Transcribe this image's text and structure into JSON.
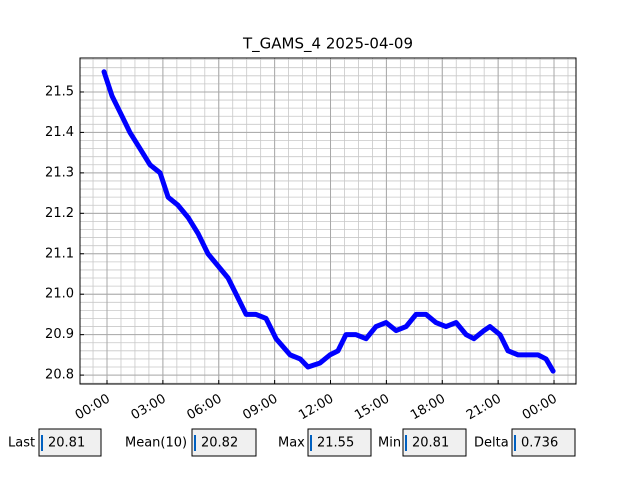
{
  "chart_data": {
    "type": "line",
    "title": "T_GAMS_4 2025-04-09",
    "x": [
      -0.16,
      0.27,
      0.7,
      1.23,
      1.77,
      2.31,
      2.85,
      3.28,
      3.81,
      4.35,
      4.89,
      5.42,
      5.96,
      6.5,
      7.04,
      7.47,
      8.0,
      8.54,
      9.08,
      9.83,
      10.37,
      10.79,
      11.44,
      11.97,
      12.4,
      12.83,
      13.37,
      13.91,
      14.44,
      14.98,
      15.52,
      16.06,
      16.59,
      17.13,
      17.66,
      18.2,
      18.74,
      19.28,
      19.7,
      20.24,
      20.56,
      21.1,
      21.53,
      22.07,
      22.6,
      23.14,
      23.57,
      23.95
    ],
    "values": [
      21.55,
      21.49,
      21.45,
      21.4,
      21.36,
      21.32,
      21.3,
      21.24,
      21.22,
      21.19,
      21.15,
      21.1,
      21.07,
      21.04,
      20.99,
      20.95,
      20.95,
      20.94,
      20.89,
      20.85,
      20.84,
      20.82,
      20.83,
      20.85,
      20.86,
      20.9,
      20.9,
      20.89,
      20.92,
      20.93,
      20.91,
      20.92,
      20.95,
      20.95,
      20.93,
      20.92,
      20.93,
      20.9,
      20.89,
      20.91,
      20.92,
      20.9,
      20.86,
      20.85,
      20.85,
      20.85,
      20.84,
      20.81
    ],
    "color": "#0000ff",
    "xlim": [
      -1.45,
      25.18
    ],
    "xticks": [
      {
        "value": 0,
        "label": "00:00"
      },
      {
        "value": 3,
        "label": "03:00"
      },
      {
        "value": 6,
        "label": "06:00"
      },
      {
        "value": 9,
        "label": "09:00"
      },
      {
        "value": 12,
        "label": "12:00"
      },
      {
        "value": 15,
        "label": "15:00"
      },
      {
        "value": 18,
        "label": "18:00"
      },
      {
        "value": 21,
        "label": "21:00"
      },
      {
        "value": 24,
        "label": "00:00"
      }
    ],
    "ylim": [
      20.778,
      21.584
    ],
    "yticks": [
      20.8,
      20.9,
      {
        "value": 21,
        "label": "21.0"
      },
      21.1,
      21.2,
      21.3,
      21.4,
      21.5
    ],
    "grid": true
  },
  "stats": [
    {
      "label": "Last",
      "value": "20.81"
    },
    {
      "label": "Mean(10)",
      "value": "20.82"
    },
    {
      "label": "Max",
      "value": "21.55"
    },
    {
      "label": "Min",
      "value": "20.81"
    },
    {
      "label": "Delta",
      "value": "0.736"
    }
  ]
}
